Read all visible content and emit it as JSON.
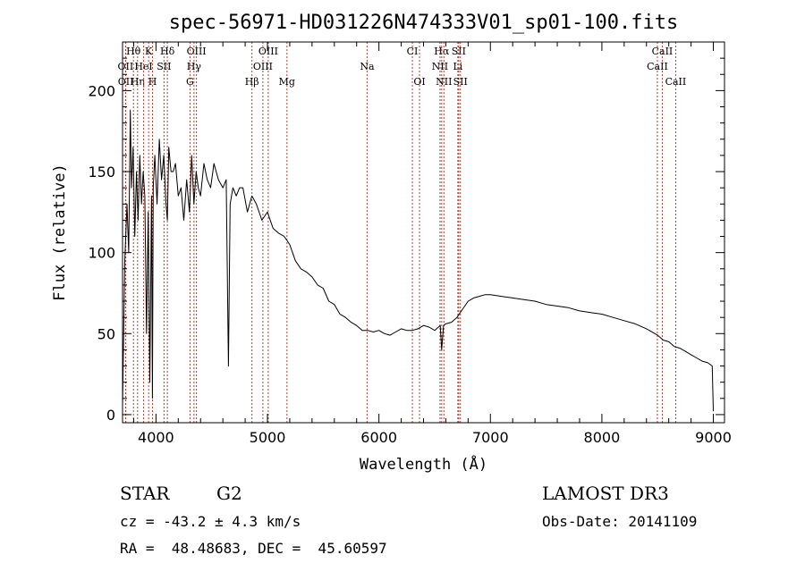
{
  "chart_data": {
    "type": "line",
    "title": "spec-56971-HD031226N474333V01_sp01-100.fits",
    "xlabel": "Wavelength (Å)",
    "ylabel": "Flux (relative)",
    "xlim": [
      3700,
      9100
    ],
    "ylim": [
      -5,
      230
    ],
    "xticks": [
      4000,
      5000,
      6000,
      7000,
      8000,
      9000
    ],
    "yticks": [
      0,
      50,
      100,
      150,
      200
    ],
    "series": [
      {
        "name": "spectrum",
        "x": [
          3700,
          3720,
          3740,
          3755,
          3770,
          3780,
          3795,
          3810,
          3825,
          3840,
          3855,
          3870,
          3885,
          3900,
          3915,
          3930,
          3945,
          3960,
          3968,
          3975,
          3990,
          4010,
          4030,
          4050,
          4070,
          4090,
          4102,
          4115,
          4135,
          4155,
          4175,
          4200,
          4225,
          4250,
          4275,
          4300,
          4320,
          4340,
          4360,
          4380,
          4400,
          4430,
          4460,
          4490,
          4520,
          4560,
          4600,
          4630,
          4650,
          4665,
          4690,
          4720,
          4750,
          4780,
          4820,
          4860,
          4900,
          4950,
          5000,
          5050,
          5100,
          5150,
          5200,
          5250,
          5300,
          5350,
          5400,
          5450,
          5500,
          5550,
          5600,
          5650,
          5700,
          5750,
          5800,
          5850,
          5900,
          5950,
          6000,
          6050,
          6100,
          6150,
          6200,
          6250,
          6300,
          6350,
          6400,
          6450,
          6500,
          6550,
          6563,
          6580,
          6600,
          6650,
          6700,
          6750,
          6800,
          6850,
          6900,
          6950,
          7000,
          7100,
          7200,
          7300,
          7400,
          7500,
          7600,
          7700,
          7800,
          7900,
          8000,
          8100,
          8200,
          8300,
          8400,
          8500,
          8550,
          8600,
          8650,
          8700,
          8750,
          8800,
          8850,
          8900,
          8950,
          8990,
          9000
        ],
        "y": [
          5,
          95,
          130,
          100,
          188,
          140,
          165,
          110,
          150,
          120,
          160,
          130,
          150,
          135,
          50,
          125,
          20,
          135,
          10,
          140,
          160,
          130,
          170,
          145,
          160,
          130,
          120,
          165,
          150,
          150,
          155,
          135,
          140,
          120,
          145,
          125,
          160,
          130,
          150,
          140,
          135,
          155,
          145,
          140,
          155,
          145,
          140,
          145,
          30,
          130,
          140,
          135,
          140,
          140,
          125,
          135,
          130,
          120,
          125,
          115,
          112,
          110,
          105,
          95,
          90,
          88,
          85,
          80,
          78,
          70,
          68,
          62,
          60,
          57,
          55,
          52,
          52,
          51,
          52,
          50,
          49,
          51,
          53,
          52,
          52,
          53,
          55,
          54,
          52,
          55,
          40,
          55,
          56,
          57,
          60,
          65,
          70,
          72,
          73,
          74,
          74,
          73,
          72,
          71,
          70,
          68,
          67,
          66,
          64,
          63,
          62,
          60,
          58,
          56,
          53,
          49,
          46,
          45,
          42,
          41,
          39,
          37,
          35,
          33,
          32,
          30,
          2
        ]
      }
    ],
    "lines": [
      {
        "label": "Hθ",
        "x": 3798,
        "row": 0
      },
      {
        "label": "OII",
        "x": 3727,
        "row": 1
      },
      {
        "label": "OII",
        "x": 3729,
        "row": 2
      },
      {
        "label": "Hη",
        "x": 3835,
        "row": 2
      },
      {
        "label": "HeI",
        "x": 3889,
        "row": 1
      },
      {
        "label": "K",
        "x": 3934,
        "row": 0
      },
      {
        "label": "H",
        "x": 3969,
        "row": 2
      },
      {
        "label": "SII",
        "x": 4072,
        "row": 1
      },
      {
        "label": "Hδ",
        "x": 4102,
        "row": 0
      },
      {
        "label": "OIII",
        "x": 4363,
        "row": 0
      },
      {
        "label": "Hγ",
        "x": 4341,
        "row": 1
      },
      {
        "label": "G",
        "x": 4305,
        "row": 2
      },
      {
        "label": "Hβ",
        "x": 4861,
        "row": 2
      },
      {
        "label": "OIII",
        "x": 5007,
        "row": 0
      },
      {
        "label": "OIII",
        "x": 4959,
        "row": 1
      },
      {
        "label": "Mg",
        "x": 5175,
        "row": 2
      },
      {
        "label": "Na",
        "x": 5894,
        "row": 1
      },
      {
        "label": "CI",
        "x": 6300,
        "row": 0
      },
      {
        "label": "OI",
        "x": 6364,
        "row": 2
      },
      {
        "label": "Hα",
        "x": 6563,
        "row": 0
      },
      {
        "label": "NII",
        "x": 6548,
        "row": 1
      },
      {
        "label": "NII",
        "x": 6583,
        "row": 2
      },
      {
        "label": "SII",
        "x": 6716,
        "row": 0
      },
      {
        "label": "Li",
        "x": 6708,
        "row": 1
      },
      {
        "label": "SII",
        "x": 6731,
        "row": 2
      },
      {
        "label": "CaII",
        "x": 8542,
        "row": 0
      },
      {
        "label": "CaII",
        "x": 8498,
        "row": 1
      },
      {
        "label": "CaII",
        "x": 8662,
        "row": 2
      }
    ]
  },
  "info": {
    "object_class": "STAR",
    "subclass": "G2",
    "survey": "LAMOST DR3",
    "redshift": "cz = -43.2 ± 4.3 km/s",
    "obs_date": "Obs-Date: 20141109",
    "coords": "RA =  48.48683, DEC =  45.60597"
  },
  "colors": {
    "spectrum": "#000000",
    "line_markers": "#c0392b"
  }
}
